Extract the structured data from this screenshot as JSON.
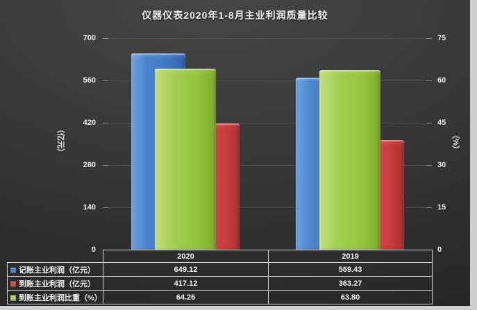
{
  "page": {
    "background": "#cfcfcf"
  },
  "chart_data": {
    "type": "bar",
    "title": "仪器仪表2020年1-8月主业利润质量比较",
    "categories": [
      "2020",
      "2019"
    ],
    "series": [
      {
        "name": "记账主业利润（亿元）",
        "axis": "left",
        "color": "#4b85ce",
        "color_key": "blue",
        "values": [
          649.12,
          569.43
        ]
      },
      {
        "name": "到账主业利润（亿元）",
        "axis": "left",
        "color": "#d84b4b",
        "color_key": "red",
        "values": [
          417.12,
          363.27
        ]
      },
      {
        "name": "到账主业利润比重（%）",
        "axis": "right",
        "color": "#a5d054",
        "color_key": "green",
        "values": [
          64.26,
          63.8
        ]
      }
    ],
    "left_axis": {
      "title": "（亿元）",
      "max": 700,
      "ticks": [
        700,
        560,
        420,
        280,
        140,
        0
      ]
    },
    "right_axis": {
      "title": "（%）",
      "max": 75,
      "ticks": [
        75,
        60,
        45,
        30,
        15,
        0
      ]
    },
    "value_format_decimals": 2,
    "grid": true,
    "legend_position": "table-left"
  }
}
